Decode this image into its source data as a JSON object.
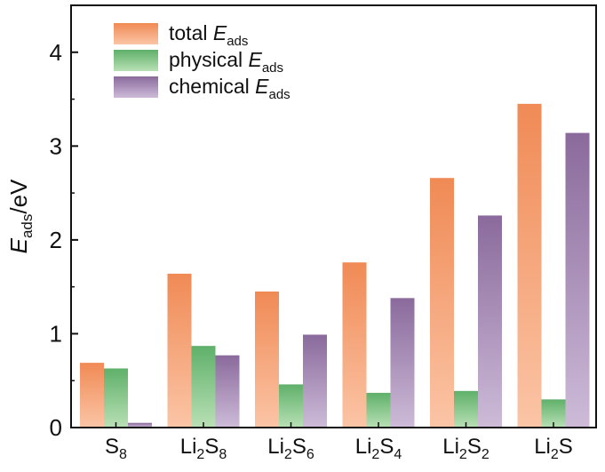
{
  "chart_data": {
    "type": "bar",
    "title": "",
    "xlabel": "",
    "ylabel": {
      "main": "E",
      "sub": "ads",
      "suffix": "/eV"
    },
    "ylim": [
      0,
      4.5
    ],
    "yticks": [
      "0",
      "1",
      "2",
      "3",
      "4"
    ],
    "categories": [
      {
        "base": "S",
        "subs": [
          [
            "S",
            "8"
          ]
        ]
      },
      {
        "base": "Li2S8",
        "subs": [
          [
            "Li",
            "2"
          ],
          [
            "S",
            "8"
          ]
        ]
      },
      {
        "base": "Li2S6",
        "subs": [
          [
            "Li",
            "2"
          ],
          [
            "S",
            "6"
          ]
        ]
      },
      {
        "base": "Li2S4",
        "subs": [
          [
            "Li",
            "2"
          ],
          [
            "S",
            "4"
          ]
        ]
      },
      {
        "base": "Li2S2",
        "subs": [
          [
            "Li",
            "2"
          ],
          [
            "S",
            "2"
          ]
        ]
      },
      {
        "base": "Li2S",
        "subs": [
          [
            "Li",
            "2"
          ],
          [
            "S",
            ""
          ]
        ]
      }
    ],
    "series": [
      {
        "name": "total",
        "legend_prefix": "total ",
        "legend_var": "E",
        "legend_sub": "ads",
        "color_top": "#f08a55",
        "color_bottom": "#fbc5a6",
        "values": [
          0.69,
          1.64,
          1.45,
          1.76,
          2.66,
          3.45
        ]
      },
      {
        "name": "physical",
        "legend_prefix": "physical ",
        "legend_var": "E",
        "legend_sub": "ads",
        "color_top": "#5fb06a",
        "color_bottom": "#b9e0b5",
        "values": [
          0.63,
          0.87,
          0.46,
          0.37,
          0.39,
          0.3
        ]
      },
      {
        "name": "chemical",
        "legend_prefix": "chemical ",
        "legend_var": "E",
        "legend_sub": "ads",
        "color_top": "#8a6a9c",
        "color_bottom": "#cdbbd8",
        "values": [
          0.05,
          0.77,
          0.99,
          1.38,
          2.26,
          3.14
        ]
      }
    ],
    "legend_position": "top-left",
    "grid": false
  }
}
